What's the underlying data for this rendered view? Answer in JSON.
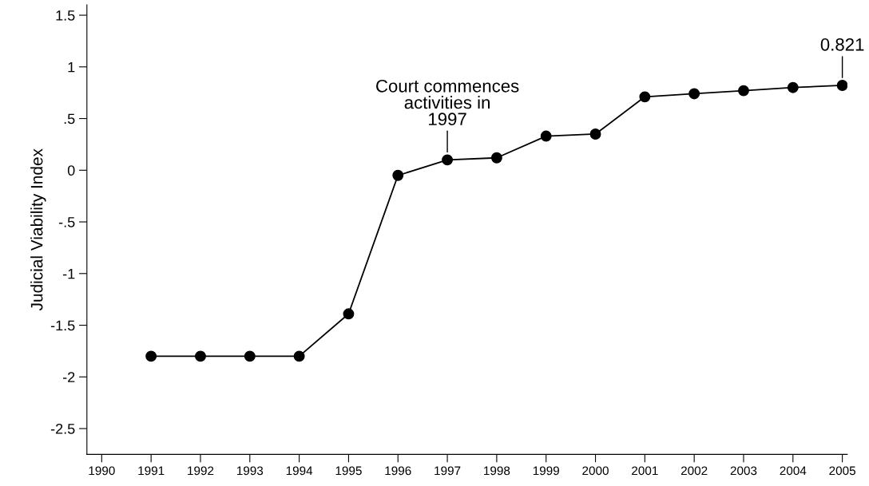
{
  "chart_data": {
    "type": "line",
    "ylabel": "Judicial Viability Index",
    "x": [
      1991,
      1992,
      1993,
      1994,
      1995,
      1996,
      1997,
      1998,
      1999,
      2000,
      2001,
      2002,
      2003,
      2004,
      2005
    ],
    "series": [
      {
        "color": "#000000",
        "values": [
          -1.8,
          -1.8,
          -1.8,
          -1.8,
          -1.39,
          -0.05,
          0.1,
          0.12,
          0.33,
          0.35,
          0.71,
          0.74,
          0.77,
          0.8,
          0.821
        ]
      }
    ],
    "marker": "circle",
    "line_style": "solid",
    "grid": false,
    "legend": false,
    "xlim": [
      1989.7,
      2005.1
    ],
    "ylim": [
      -2.75,
      1.6
    ],
    "xticks": [
      1990,
      1991,
      1992,
      1993,
      1994,
      1995,
      1996,
      1997,
      1998,
      1999,
      2000,
      2001,
      2002,
      2003,
      2004,
      2005
    ],
    "yticks": [
      -2.5,
      -2,
      {
        "value": -1.5,
        "label": "-1.5"
      },
      -1,
      {
        "value": -0.5,
        "label": "-.5"
      },
      0,
      {
        "value": 0.5,
        "label": ".5"
      },
      1,
      1.5
    ],
    "annotations": [
      {
        "text": "Court commences\nactivities in\n1997",
        "x": 1997,
        "y": 0.1
      },
      {
        "text": "0.821",
        "x": 2005,
        "y": 0.821
      }
    ]
  }
}
